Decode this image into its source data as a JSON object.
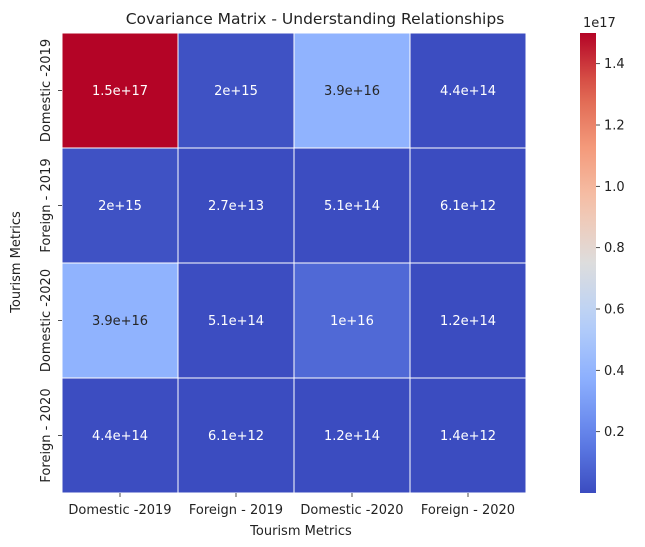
{
  "chart_data": {
    "type": "heatmap",
    "title": "Covariance Matrix - Understanding Relationships",
    "xlabel": "Tourism Metrics",
    "ylabel": "Tourism Metrics",
    "x_categories": [
      "Domestic -2019",
      "Foreign - 2019",
      "Domestic -2020",
      "Foreign - 2020"
    ],
    "y_categories": [
      "Domestic -2019",
      "Foreign - 2019",
      "Domestic -2020",
      "Foreign - 2020"
    ],
    "values": [
      [
        1.5e+17,
        2000000000000000.0,
        3.9e+16,
        440000000000000.0
      ],
      [
        2000000000000000.0,
        27000000000000.0,
        510000000000000.0,
        6100000000000.0
      ],
      [
        3.9e+16,
        510000000000000.0,
        1e+16,
        120000000000000.0
      ],
      [
        440000000000000.0,
        6100000000000.0,
        120000000000000.0,
        1400000000000.0
      ]
    ],
    "annotations": [
      [
        "1.5e+17",
        "2e+15",
        "3.9e+16",
        "4.4e+14"
      ],
      [
        "2e+15",
        "2.7e+13",
        "5.1e+14",
        "6.1e+12"
      ],
      [
        "3.9e+16",
        "5.1e+14",
        "1e+16",
        "1.2e+14"
      ],
      [
        "4.4e+14",
        "6.1e+12",
        "1.2e+14",
        "1.4e+12"
      ]
    ],
    "colormap": "coolwarm",
    "colorbar": {
      "scale_label": "1e17",
      "ticks": [
        0.2,
        0.4,
        0.6,
        0.8,
        1.0,
        1.2,
        1.4
      ],
      "tick_labels": [
        "0.2",
        "0.4",
        "0.6",
        "0.8",
        "1.0",
        "1.2",
        "1.4"
      ],
      "range": [
        1.4e-05,
        1.5
      ]
    }
  }
}
